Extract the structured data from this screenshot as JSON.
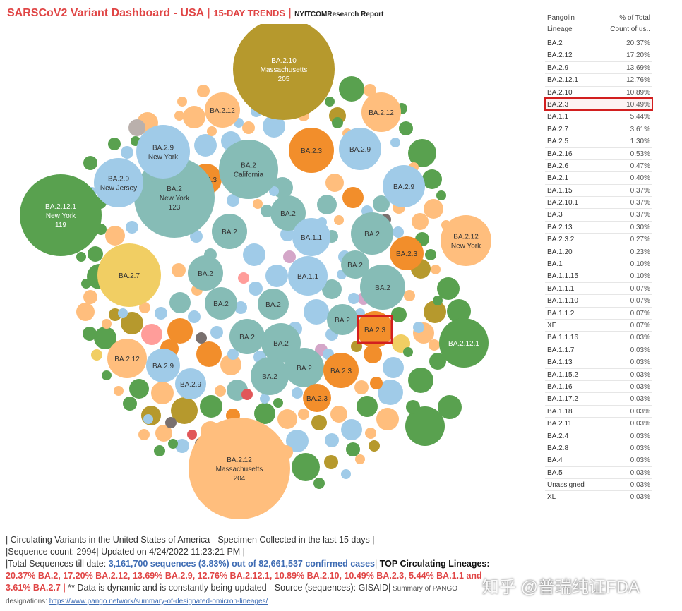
{
  "header": {
    "title": "SARSCoV2 Variant Dashboard - USA",
    "separator": "|",
    "subtitle": "15-DAY TRENDS",
    "separator2": "|",
    "report": "NYITCOMResearch Report"
  },
  "side_panel": {
    "col1_header_line1": "Pangolin",
    "col1_header_line2": "Lineage",
    "col2_header_line1": "% of Total",
    "col2_header_line2": "Count of us..",
    "rows": [
      {
        "lineage": "BA.2",
        "pct": "20.37%"
      },
      {
        "lineage": "BA.2.12",
        "pct": "17.20%"
      },
      {
        "lineage": "BA.2.9",
        "pct": "13.69%"
      },
      {
        "lineage": "BA.2.12.1",
        "pct": "12.76%"
      },
      {
        "lineage": "BA.2.10",
        "pct": "10.89%"
      },
      {
        "lineage": "BA.2.3",
        "pct": "10.49%",
        "highlight": true
      },
      {
        "lineage": "BA.1.1",
        "pct": "5.44%"
      },
      {
        "lineage": "BA.2.7",
        "pct": "3.61%"
      },
      {
        "lineage": "BA.2.5",
        "pct": "1.30%"
      },
      {
        "lineage": "BA.2.16",
        "pct": "0.53%"
      },
      {
        "lineage": "BA.2.6",
        "pct": "0.47%"
      },
      {
        "lineage": "BA.2.1",
        "pct": "0.40%"
      },
      {
        "lineage": "BA.1.15",
        "pct": "0.37%"
      },
      {
        "lineage": "BA.2.10.1",
        "pct": "0.37%"
      },
      {
        "lineage": "BA.3",
        "pct": "0.37%"
      },
      {
        "lineage": "BA.2.13",
        "pct": "0.30%"
      },
      {
        "lineage": "BA.2.3.2",
        "pct": "0.27%"
      },
      {
        "lineage": "BA.1.20",
        "pct": "0.23%"
      },
      {
        "lineage": "BA.1",
        "pct": "0.10%"
      },
      {
        "lineage": "BA.1.1.15",
        "pct": "0.10%"
      },
      {
        "lineage": "BA.1.1.1",
        "pct": "0.07%"
      },
      {
        "lineage": "BA.1.1.10",
        "pct": "0.07%"
      },
      {
        "lineage": "BA.1.1.2",
        "pct": "0.07%"
      },
      {
        "lineage": "XE",
        "pct": "0.07%"
      },
      {
        "lineage": "BA.1.1.16",
        "pct": "0.03%"
      },
      {
        "lineage": "BA.1.1.7",
        "pct": "0.03%"
      },
      {
        "lineage": "BA.1.13",
        "pct": "0.03%"
      },
      {
        "lineage": "BA.1.15.2",
        "pct": "0.03%"
      },
      {
        "lineage": "BA.1.16",
        "pct": "0.03%"
      },
      {
        "lineage": "BA.1.17.2",
        "pct": "0.03%"
      },
      {
        "lineage": "BA.1.18",
        "pct": "0.03%"
      },
      {
        "lineage": "BA.2.11",
        "pct": "0.03%"
      },
      {
        "lineage": "BA.2.4",
        "pct": "0.03%"
      },
      {
        "lineage": "BA.2.8",
        "pct": "0.03%"
      },
      {
        "lineage": "BA.4",
        "pct": "0.03%"
      },
      {
        "lineage": "BA.5",
        "pct": "0.03%"
      },
      {
        "lineage": "Unassigned",
        "pct": "0.03%"
      },
      {
        "lineage": "XL",
        "pct": "0.03%"
      }
    ]
  },
  "footer": {
    "line1": "| Circulating Variants in the United States of America - Specimen Collected in the last 15 days |",
    "line2": "|Sequence count: 2994|  Updated on 4/24/2022 11:23:21 PM |",
    "line3_prefix": "|Total Sequences till date: ",
    "line3_blue": "3,161,700 sequences (3.83%) out of 82,661,537 confirmed cases",
    "line3_sep": "|",
    "line3_bold": " TOP Circulating Lineages:",
    "line4_red": "20.37% BA.2, 17.20% BA.2.12,  13.69% BA.2.9, 12.76% BA.2.12.1, 10.89% BA.2.10, 10.49% BA.2.3, 5.44% BA.1.1 and",
    "line5_red": "3.61% BA.2.7 |",
    "line5_text": " ** Data is dynamic and is constantly being updated - Source (sequences): GISAID|",
    "line5_small": " Summary of PANGO",
    "line6_prefix": "designations: ",
    "line6_link": "https://www.pango.network/summary-of-designated-omicron-lineages/"
  },
  "watermark": "知乎 @普瑞纯证FDA",
  "colors": {
    "BA.2": "#86bcb6",
    "BA.2.12": "#ffbe7d",
    "BA.2.9": "#a0cbe8",
    "BA.2.12.1": "#59a14f",
    "BA.2.10": "#b6992d",
    "BA.2.3": "#f28e2b",
    "BA.1.1": "#a0cbe8",
    "BA.2.7": "#f1ce63",
    "other_pink": "#ff9d9a",
    "other_grey": "#79706e",
    "other_red": "#e15759",
    "other_purple": "#d4a6c8",
    "other_mauve": "#bab0ac",
    "highlight": "#d21f1f",
    "title_red": "#e04545",
    "link_blue": "#3d6bb3"
  },
  "chart_data": {
    "type": "packed-bubble",
    "labeled_bubbles": [
      {
        "lineage": "BA.2.10",
        "state": "Massachusetts",
        "count": 205
      },
      {
        "lineage": "BA.2.12",
        "state": "Massachusetts",
        "count": 204
      },
      {
        "lineage": "BA.2",
        "state": "New York",
        "count": 123
      },
      {
        "lineage": "BA.2.12.1",
        "state": "New York",
        "count": 119
      },
      {
        "lineage": "BA.2",
        "state": "California"
      },
      {
        "lineage": "BA.2.9",
        "state": "New York"
      },
      {
        "lineage": "BA.2.9",
        "state": "New Jersey"
      },
      {
        "lineage": "BA.2.12",
        "state": "New York"
      },
      {
        "lineage": "BA.2.7"
      },
      {
        "lineage": "BA.2.12.1"
      },
      {
        "lineage": "BA.1.1"
      },
      {
        "lineage": "BA.2.3",
        "highlight": true
      }
    ]
  }
}
